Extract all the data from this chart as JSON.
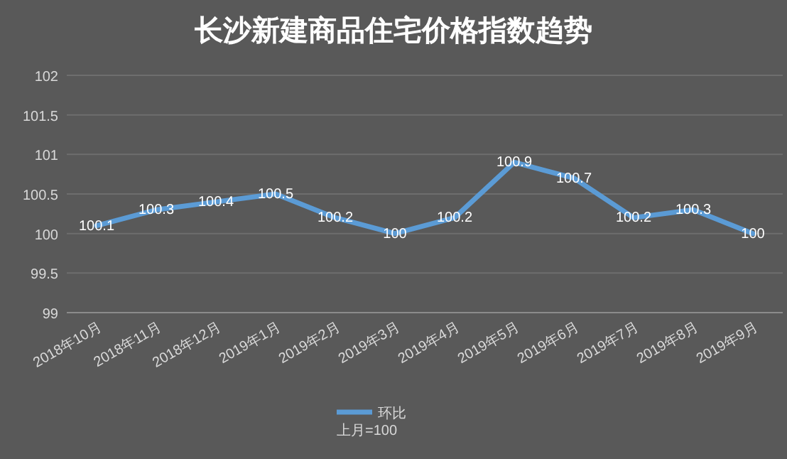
{
  "chart_data": {
    "type": "line",
    "title": "长沙新建商品住宅价格指数趋势",
    "categories": [
      "2018年10月",
      "2018年11月",
      "2018年12月",
      "2019年1月",
      "2019年2月",
      "2019年3月",
      "2019年4月",
      "2019年5月",
      "2019年6月",
      "2019年7月",
      "2019年8月",
      "2019年9月"
    ],
    "series": [
      {
        "name": "环比",
        "color": "#5b9bd5",
        "values": [
          100.1,
          100.3,
          100.4,
          100.5,
          100.2,
          100,
          100.2,
          100.9,
          100.7,
          100.2,
          100.3,
          100
        ]
      }
    ],
    "ylim": [
      99,
      102
    ],
    "yticks": [
      99,
      99.5,
      100,
      100.5,
      101,
      101.5,
      102
    ],
    "grid": "y",
    "legend": "bottom",
    "data_labels": true,
    "marker": "none",
    "line_style": "solid",
    "annotations": [
      "上月=100"
    ]
  }
}
